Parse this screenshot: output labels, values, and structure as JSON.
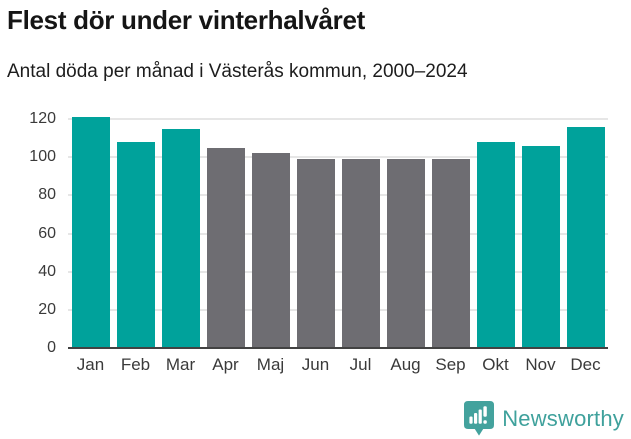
{
  "header": {
    "title": "Flest dör under vinterhalvåret",
    "subtitle": "Antal döda per månad i Västerås kommun, 2000–2024"
  },
  "chart_data": {
    "type": "bar",
    "title": "Flest dör under vinterhalvåret",
    "subtitle": "Antal döda per månad i Västerås kommun, 2000–2024",
    "categories": [
      "Jan",
      "Feb",
      "Mar",
      "Apr",
      "Maj",
      "Jun",
      "Jul",
      "Aug",
      "Sep",
      "Okt",
      "Nov",
      "Dec"
    ],
    "values": [
      121,
      108,
      115,
      105,
      102,
      99,
      99,
      99,
      99,
      108,
      106,
      116
    ],
    "bar_groups": [
      "highlight",
      "highlight",
      "highlight",
      "muted",
      "muted",
      "muted",
      "muted",
      "muted",
      "muted",
      "highlight",
      "highlight",
      "highlight"
    ],
    "xlabel": "",
    "ylabel": "",
    "yticks": [
      0,
      20,
      40,
      60,
      80,
      100,
      120
    ],
    "ylim": [
      0,
      122
    ],
    "grid": true,
    "legend": "none",
    "colors": {
      "highlight": "#00a29b",
      "muted": "#6e6d72",
      "gridline": "#e6e6e6",
      "baseline": "#424242",
      "axis_text": "#3a3a3a"
    }
  },
  "footer": {
    "logo_text": "Newsworthy",
    "logo_text_color": "#3fa19c",
    "logo_icon": "newsworthy-pin-barchart-icon",
    "logo_icon_color": "#43a29d"
  }
}
